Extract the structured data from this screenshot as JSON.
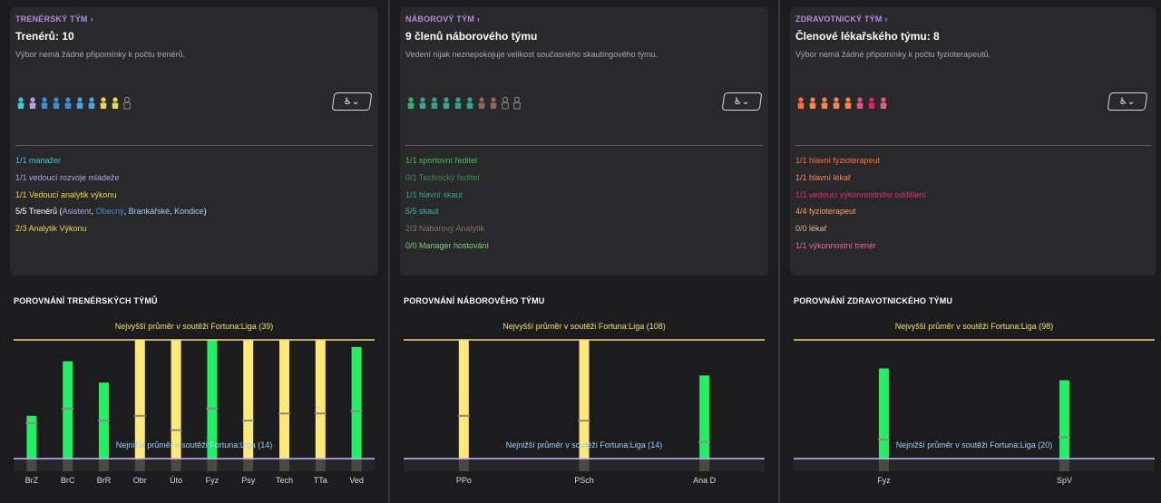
{
  "panels": [
    {
      "title": "TRENÉRSKÝ TÝM",
      "headline": "Trenérů: 10",
      "note": "Výbor nemá žádné připomínky k počtu trenérů.",
      "people_colors": [
        "#3ec8d8",
        "#b89ee8",
        "#3a8fd8",
        "#3a8fd8",
        "#3a8fd8",
        "#4aa4e0",
        "#4aa4e0",
        "#e8d84a",
        "#e8d84a",
        "#8a8a8a"
      ],
      "people_filled": [
        true,
        true,
        true,
        true,
        true,
        true,
        true,
        true,
        true,
        false
      ],
      "roles": [
        {
          "text": "1/1 manažer",
          "color": "#3ec8d8"
        },
        {
          "text": "1/1 vedoucí rozvoje mládeže",
          "color": "#b89ee8"
        },
        {
          "text": "1/1 Vedoucí analytik výkonu",
          "color": "#e8d84a"
        },
        {
          "text": "5/5 Trenérů (",
          "color": "#ffffff",
          "parts": [
            {
              "text": "Asistent",
              "color": "#b89ee8"
            },
            {
              "text": ", ",
              "color": "#ffffff"
            },
            {
              "text": "Obecný",
              "color": "#3a8fd8"
            },
            {
              "text": ", ",
              "color": "#ffffff"
            },
            {
              "text": "Brankářské",
              "color": "#9ad0f5"
            },
            {
              "text": ", ",
              "color": "#ffffff"
            },
            {
              "text": "Kondice",
              "color": "#9ad0f5"
            },
            {
              "text": ")",
              "color": "#ffffff"
            }
          ]
        },
        {
          "text": "2/3 Analytik Výkonu",
          "color": "#e8d84a"
        }
      ],
      "comparison_title": "POROVNÁNÍ TRENÉRSKÝCH TÝMŮ",
      "chart_data": {
        "type": "bar",
        "categories": [
          "BrZ",
          "BrC",
          "BrR",
          "Obr",
          "Úto",
          "Fyz",
          "Psy",
          "Tech",
          "TTa",
          "Ved"
        ],
        "values": [
          23,
          46,
          37,
          55,
          55,
          55,
          55,
          55,
          55,
          52
        ],
        "averages": [
          20,
          26,
          21,
          23,
          17,
          26,
          21,
          24,
          24,
          25
        ],
        "colors": [
          "#22ee66",
          "#22ee66",
          "#22ee66",
          "#ffe87a",
          "#ffe87a",
          "#22ee66",
          "#ffe87a",
          "#ffe87a",
          "#ffe87a",
          "#22ee66"
        ],
        "top_label": "Nejvyšší průměr v soutěži Fortuna:Liga (39)",
        "bottom_label": "Nejnižší průměr v soutěži Fortuna:Liga (14)",
        "top": 55,
        "bottom": 5
      }
    },
    {
      "title": "NÁBOROVÝ TÝM",
      "headline": "9 členů náborového týmu",
      "note": "Vedení nijak neznepokojuje velikost současného skautingového týmu.",
      "people_colors": [
        "#38b070",
        "#2fa890",
        "#2fa890",
        "#2fa890",
        "#2fa890",
        "#2fa890",
        "#8a6a5a",
        "#8a6a5a",
        "#8a8a8a",
        "#8a8a8a"
      ],
      "people_filled": [
        true,
        true,
        true,
        true,
        true,
        true,
        true,
        true,
        false,
        false
      ],
      "roles": [
        {
          "text": "1/1 sportovní ředitel",
          "color": "#50b860"
        },
        {
          "text": "0/1 Technický ředitel",
          "color": "#3a8a5a"
        },
        {
          "text": "1/1 hlavní skaut",
          "color": "#2fa890"
        },
        {
          "text": "5/5 skaut",
          "color": "#2fc0a8"
        },
        {
          "text": "2/3 Náborový Analytik",
          "color": "#8a7060"
        },
        {
          "text": "0/0 Manager hostování",
          "color": "#7ad07a"
        }
      ],
      "comparison_title": "POROVNÁNÍ NÁBOROVÉHO TÝMU",
      "chart_data": {
        "type": "bar",
        "categories": [
          "PPo",
          "PSch",
          "Ana D"
        ],
        "values": [
          55,
          55,
          40
        ],
        "averages": [
          23,
          21,
          12
        ],
        "colors": [
          "#ffe87a",
          "#ffe87a",
          "#22ee66"
        ],
        "top_label": "Nejvyšší průměr v soutěži Fortuna:Liga (108)",
        "bottom_label": "Nejnižší průměr v soutěži Fortuna:Liga (14)",
        "top": 55,
        "bottom": 5
      }
    },
    {
      "title": "ZDRAVOTNICKÝ TÝM",
      "headline": "Členové lékařského týmu: 8",
      "note": "Výbor nemá žádné připomínky k počtu fyzioterapeutů.",
      "people_colors": [
        "#ff6a40",
        "#ff8050",
        "#ff8050",
        "#ff8050",
        "#ff8050",
        "#e05080",
        "#e02060",
        "#e06080"
      ],
      "people_filled": [
        true,
        true,
        true,
        true,
        true,
        true,
        true,
        true
      ],
      "roles": [
        {
          "text": "1/1 hlavní fyzioterapeut",
          "color": "#ff7040"
        },
        {
          "text": "1/1 hlavní lékař",
          "color": "#ff8a5a"
        },
        {
          "text": "1/1 vedoucí výkonnostního oddělení",
          "color": "#e0306a"
        },
        {
          "text": "4/4 fyzioterapeut",
          "color": "#ffa060"
        },
        {
          "text": "0/0 lékař",
          "color": "#e0b0a0"
        },
        {
          "text": "1/1 výkonnostní trenér",
          "color": "#e86a90"
        }
      ],
      "comparison_title": "POROVNÁNÍ ZDRAVOTNICKÉHO TÝMU",
      "chart_data": {
        "type": "bar",
        "categories": [
          "Fyz",
          "SpV"
        ],
        "values": [
          43,
          38
        ],
        "averages": [
          13,
          14
        ],
        "colors": [
          "#22ee66",
          "#22ee66"
        ],
        "top_label": "Nejvyšší průměr v soutěži Fortuna:Liga (98)",
        "bottom_label": "Nejnižší průměr v soutěži Fortuna:Liga (20)",
        "top": 55,
        "bottom": 5
      }
    }
  ]
}
